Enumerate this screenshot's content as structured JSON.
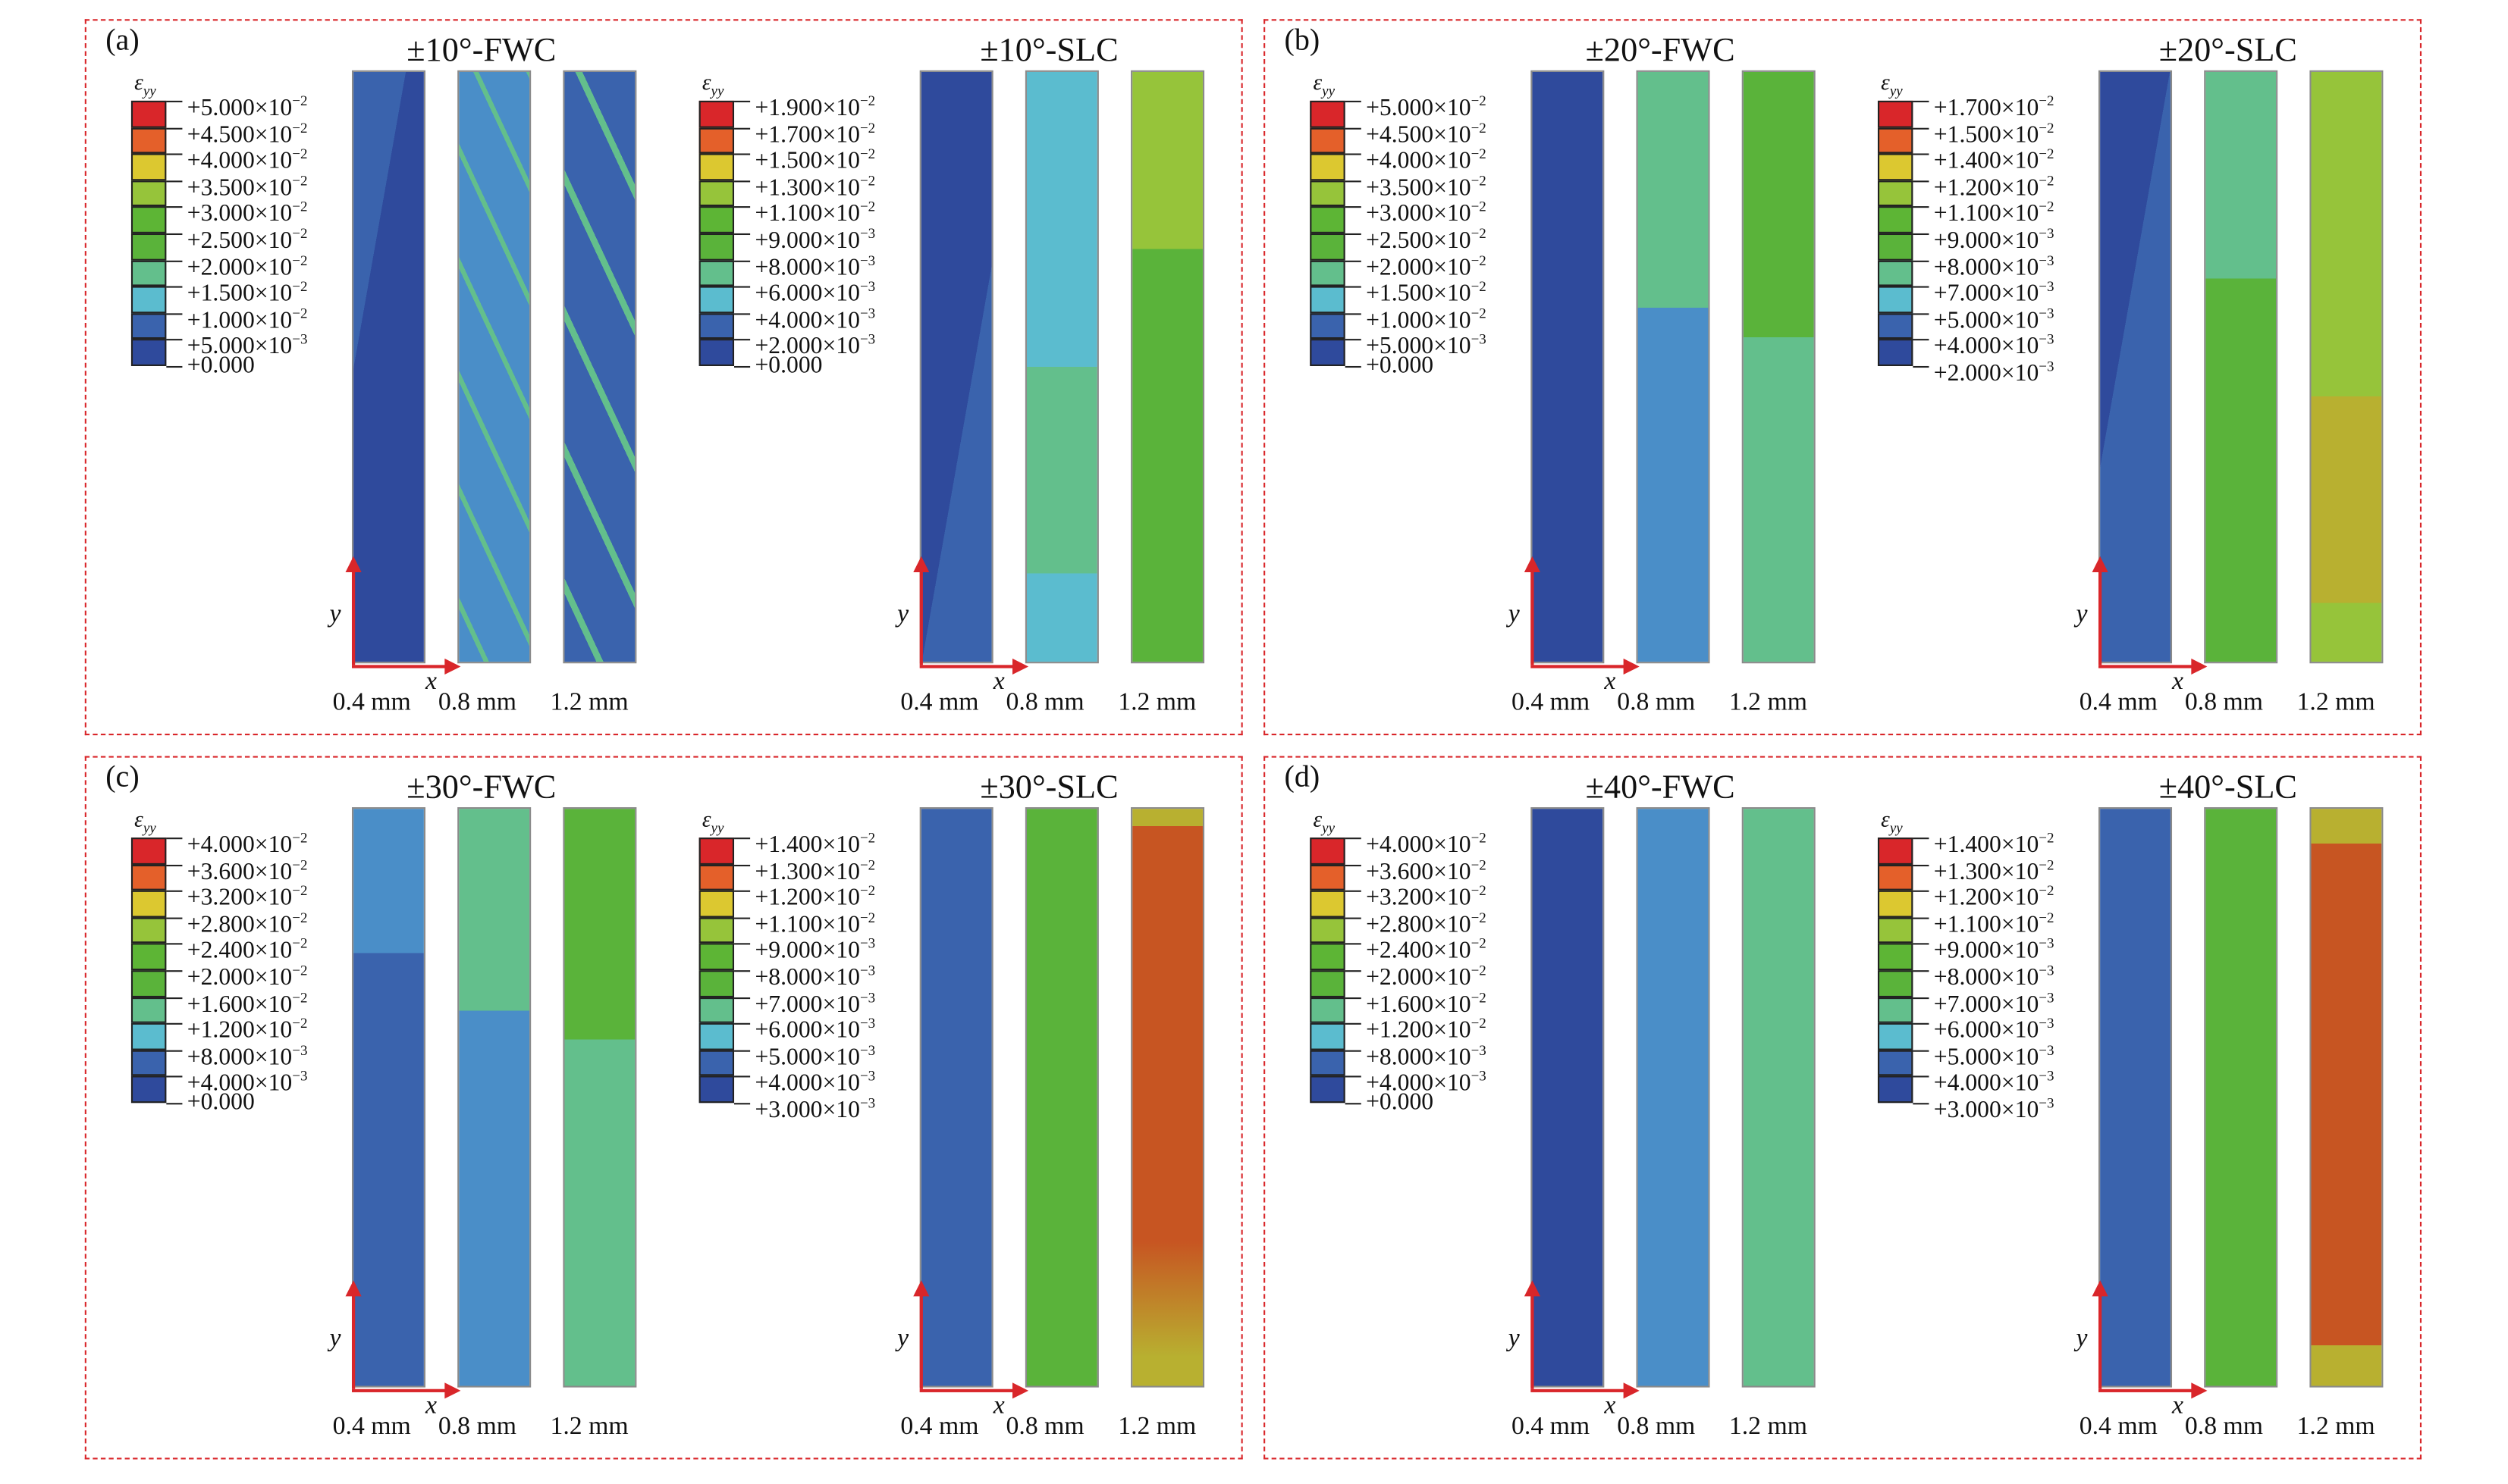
{
  "colormap": [
    "#d9262a",
    "#e4602a",
    "#dcc830",
    "#96c43a",
    "#5db535",
    "#5ab33a",
    "#63bf8c",
    "#5bbccf",
    "#3a63ad",
    "#2f4a9c"
  ],
  "legend_title": "εyy",
  "axes": {
    "x": "x",
    "y": "y"
  },
  "panels": [
    {
      "label": "(a)",
      "groups": [
        {
          "title": "±10°-FWC",
          "legend": [
            "+5.000×10⁻²",
            "+4.500×10⁻²",
            "+4.000×10⁻²",
            "+3.500×10⁻²",
            "+3.000×10⁻²",
            "+2.500×10⁻²",
            "+2.000×10⁻²",
            "+1.500×10⁻²",
            "+1.000×10⁻²",
            "+5.000×10⁻³",
            "+0.000"
          ],
          "thickness": [
            "0.4 mm",
            "0.8 mm",
            "1.2 mm"
          ]
        },
        {
          "title": "±10°-SLC",
          "legend": [
            "+1.900×10⁻²",
            "+1.700×10⁻²",
            "+1.500×10⁻²",
            "+1.300×10⁻²",
            "+1.100×10⁻²",
            "+9.000×10⁻³",
            "+8.000×10⁻³",
            "+6.000×10⁻³",
            "+4.000×10⁻³",
            "+2.000×10⁻³",
            "+0.000"
          ],
          "thickness": [
            "0.4 mm",
            "0.8 mm",
            "1.2 mm"
          ]
        }
      ]
    },
    {
      "label": "(b)",
      "groups": [
        {
          "title": "±20°-FWC",
          "legend": [
            "+5.000×10⁻²",
            "+4.500×10⁻²",
            "+4.000×10⁻²",
            "+3.500×10⁻²",
            "+3.000×10⁻²",
            "+2.500×10⁻²",
            "+2.000×10⁻²",
            "+1.500×10⁻²",
            "+1.000×10⁻²",
            "+5.000×10⁻³",
            "+0.000"
          ],
          "thickness": [
            "0.4 mm",
            "0.8 mm",
            "1.2 mm"
          ]
        },
        {
          "title": "±20°-SLC",
          "legend": [
            "+1.700×10⁻²",
            "+1.500×10⁻²",
            "+1.400×10⁻²",
            "+1.200×10⁻²",
            "+1.100×10⁻²",
            "+9.000×10⁻³",
            "+8.000×10⁻³",
            "+7.000×10⁻³",
            "+5.000×10⁻³",
            "+4.000×10⁻³",
            "+2.000×10⁻³"
          ],
          "thickness": [
            "0.4 mm",
            "0.8 mm",
            "1.2 mm"
          ]
        }
      ]
    },
    {
      "label": "(c)",
      "groups": [
        {
          "title": "±30°-FWC",
          "legend": [
            "+4.000×10⁻²",
            "+3.600×10⁻²",
            "+3.200×10⁻²",
            "+2.800×10⁻²",
            "+2.400×10⁻²",
            "+2.000×10⁻²",
            "+1.600×10⁻²",
            "+1.200×10⁻²",
            "+8.000×10⁻³",
            "+4.000×10⁻³",
            "+0.000"
          ],
          "thickness": [
            "0.4 mm",
            "0.8 mm",
            "1.2 mm"
          ]
        },
        {
          "title": "±30°-SLC",
          "legend": [
            "+1.400×10⁻²",
            "+1.300×10⁻²",
            "+1.200×10⁻²",
            "+1.100×10⁻²",
            "+9.000×10⁻³",
            "+8.000×10⁻³",
            "+7.000×10⁻³",
            "+6.000×10⁻³",
            "+5.000×10⁻³",
            "+4.000×10⁻³",
            "+3.000×10⁻³"
          ],
          "thickness": [
            "0.4 mm",
            "0.8 mm",
            "1.2 mm"
          ]
        }
      ]
    },
    {
      "label": "(d)",
      "groups": [
        {
          "title": "±40°-FWC",
          "legend": [
            "+4.000×10⁻²",
            "+3.600×10⁻²",
            "+3.200×10⁻²",
            "+2.800×10⁻²",
            "+2.400×10⁻²",
            "+2.000×10⁻²",
            "+1.600×10⁻²",
            "+1.200×10⁻²",
            "+8.000×10⁻³",
            "+4.000×10⁻³",
            "+0.000"
          ],
          "thickness": [
            "0.4 mm",
            "0.8 mm",
            "1.2 mm"
          ]
        },
        {
          "title": "±40°-SLC",
          "legend": [
            "+1.400×10⁻²",
            "+1.300×10⁻²",
            "+1.200×10⁻²",
            "+1.100×10⁻²",
            "+9.000×10⁻³",
            "+8.000×10⁻³",
            "+7.000×10⁻³",
            "+6.000×10⁻³",
            "+5.000×10⁻³",
            "+4.000×10⁻³",
            "+3.000×10⁻³"
          ],
          "thickness": [
            "0.4 mm",
            "0.8 mm",
            "1.2 mm"
          ]
        }
      ]
    }
  ]
}
